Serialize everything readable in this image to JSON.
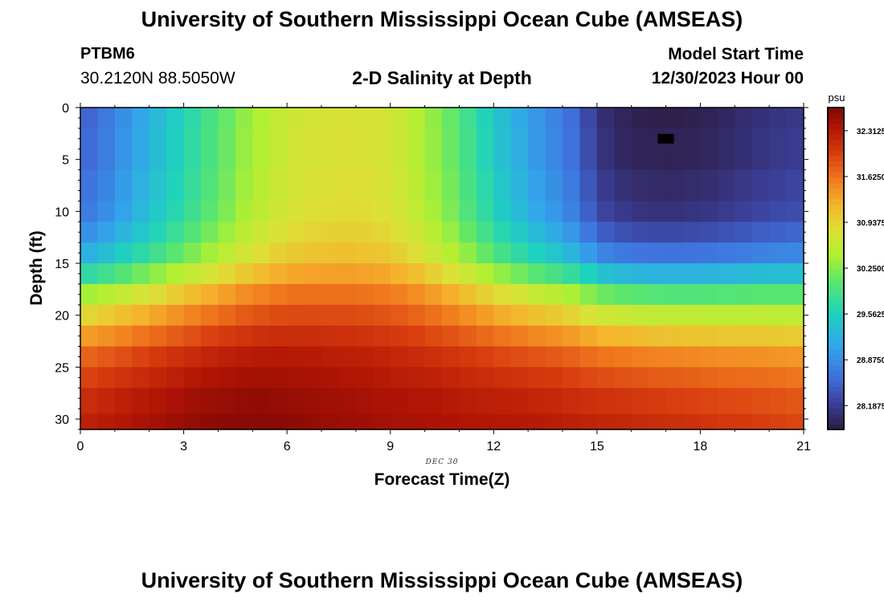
{
  "header": {
    "title": "University of Southern Mississippi Ocean Cube (AMSEAS)",
    "station": "PTBM6",
    "coords": "30.2120N  88.5050W",
    "subtitle": "2-D Salinity at Depth",
    "model_start_label": "Model Start Time",
    "model_start_value": "12/30/2023 Hour 00"
  },
  "footer": {
    "title": "University of Southern Mississippi Ocean Cube (AMSEAS)"
  },
  "chart_data": {
    "type": "heatmap",
    "title": "2-D Salinity at Depth",
    "xlabel": "Forecast Time(Z)",
    "ylabel": "Depth (ft)",
    "xlim": [
      0,
      21
    ],
    "ylim": [
      0,
      31
    ],
    "x_ticks": [
      0,
      3,
      6,
      9,
      12,
      15,
      18,
      21
    ],
    "y_ticks": [
      0,
      5,
      10,
      15,
      20,
      25,
      30
    ],
    "date_label": "DEC 30",
    "colorbar": {
      "unit": "psu",
      "min": 27.83,
      "max": 32.66,
      "tick_values": [
        28.1875,
        28.875,
        29.5625,
        30.25,
        30.9375,
        31.625,
        32.3125
      ],
      "tick_labels": [
        "28.1875",
        "28.8750",
        "29.5625",
        "30.2500",
        "30.9375",
        "31.6250",
        "32.3125"
      ]
    },
    "x": [
      0.25,
      0.75,
      1.25,
      1.75,
      2.25,
      2.75,
      3.25,
      3.75,
      4.25,
      4.75,
      5.25,
      5.75,
      6.25,
      6.75,
      7.25,
      7.75,
      8.25,
      8.75,
      9.25,
      9.75,
      10.25,
      10.75,
      11.25,
      11.75,
      12.25,
      12.75,
      13.25,
      13.75,
      14.25,
      14.75,
      15.25,
      15.75,
      16.25,
      16.75,
      17.25,
      17.75,
      18.25,
      18.75,
      19.25,
      19.75,
      20.25,
      20.75
    ],
    "depths": [
      0,
      4,
      8,
      10,
      12,
      14,
      16,
      18,
      20,
      22,
      24,
      26,
      28,
      31
    ],
    "salinity_surface": [
      28.55,
      28.7,
      28.9,
      29.1,
      29.3,
      29.5,
      29.7,
      29.9,
      30.1,
      30.3,
      30.45,
      30.6,
      30.7,
      30.75,
      30.78,
      30.8,
      30.78,
      30.75,
      30.65,
      30.5,
      30.3,
      30.1,
      29.85,
      29.6,
      29.35,
      29.15,
      28.95,
      28.8,
      28.6,
      28.3,
      28.05,
      27.95,
      27.9,
      27.88,
      27.88,
      27.9,
      27.93,
      27.98,
      28.03,
      28.08,
      28.12,
      28.15
    ],
    "salinity_bottom": [
      32.25,
      32.3,
      32.35,
      32.4,
      32.45,
      32.5,
      32.55,
      32.58,
      32.6,
      32.62,
      32.62,
      32.6,
      32.58,
      32.55,
      32.52,
      32.5,
      32.48,
      32.45,
      32.43,
      32.42,
      32.4,
      32.38,
      32.36,
      32.35,
      32.33,
      32.32,
      32.3,
      32.28,
      32.25,
      32.22,
      32.2,
      32.18,
      32.15,
      32.12,
      32.1,
      32.08,
      32.05,
      32.02,
      32.0,
      31.98,
      31.95,
      31.92
    ],
    "blend_weights": [
      0,
      0.01,
      0.03,
      0.05,
      0.1,
      0.18,
      0.32,
      0.5,
      0.64,
      0.76,
      0.86,
      0.92,
      0.97,
      1.0
    ],
    "marker": {
      "time": 17,
      "depth": 3,
      "color": "#000000"
    }
  }
}
